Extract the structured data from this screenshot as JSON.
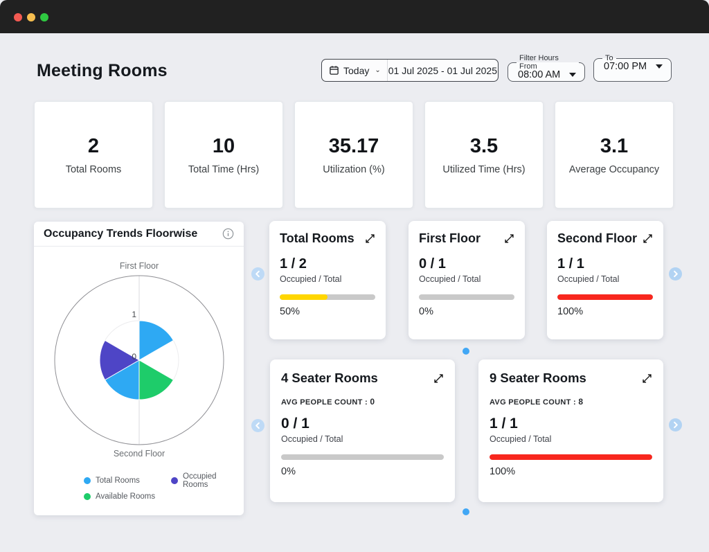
{
  "window": {
    "traffic_lights": {
      "close": "#F35A52",
      "minimize": "#F6BE4F",
      "zoom": "#2FC841"
    }
  },
  "header": {
    "title": "Meeting Rooms",
    "date_filter": {
      "preset": "Today",
      "range": "01 Jul 2025 - 01 Jul 2025"
    },
    "hours_from": {
      "label": "Filter Hours From",
      "value": "08:00 AM"
    },
    "hours_to": {
      "label": "To",
      "value": "07:00 PM"
    }
  },
  "stats": [
    {
      "value": "2",
      "label": "Total Rooms"
    },
    {
      "value": "10",
      "label": "Total Time (Hrs)"
    },
    {
      "value": "35.17",
      "label": "Utilization (%)"
    },
    {
      "value": "3.5",
      "label": "Utilized Time (Hrs)"
    },
    {
      "value": "3.1",
      "label": "Average Occupancy"
    }
  ],
  "trends_panel": {
    "title": "Occupancy Trends Floorwise",
    "legend": [
      {
        "label": "Total Rooms",
        "color": "#2EA9F3"
      },
      {
        "label": "Occupied Rooms",
        "color": "#4E45C6"
      },
      {
        "label": "Available Rooms",
        "color": "#1ECC6A"
      }
    ]
  },
  "chart_data": {
    "type": "polar-area",
    "title": "Occupancy Trends Floorwise",
    "categories": [
      "First Floor",
      "Second Floor"
    ],
    "series": [
      {
        "name": "Total Rooms",
        "color": "#2EA9F3",
        "values": [
          1,
          1
        ]
      },
      {
        "name": "Available Rooms",
        "color": "#1ECC6A",
        "values": [
          1,
          0
        ]
      },
      {
        "name": "Occupied Rooms",
        "color": "#4E45C6",
        "values": [
          0,
          1
        ]
      }
    ],
    "radial_ticks": [
      "0",
      "1"
    ],
    "radial_max": 2,
    "top_axis_label": "First Floor",
    "bottom_axis_label": "Second Floor",
    "legend_position": "bottom"
  },
  "occupancy_cards": [
    {
      "title": "Total Rooms",
      "value": "1 / 2",
      "caption": "Occupied / Total",
      "percent": 50,
      "percent_label": "50%",
      "bar_color": "#FFD600"
    },
    {
      "title": "First Floor",
      "value": "0 / 1",
      "caption": "Occupied / Total",
      "percent": 0,
      "percent_label": "0%",
      "bar_color": "#C9C9C9"
    },
    {
      "title": "Second Floor",
      "value": "1 / 1",
      "caption": "Occupied / Total",
      "percent": 100,
      "percent_label": "100%",
      "bar_color": "#F8271E"
    }
  ],
  "seater_cards": [
    {
      "title": "4 Seater Rooms",
      "avg_label": "AVG PEOPLE COUNT :",
      "avg_value": "0",
      "value": "0 / 1",
      "caption": "Occupied / Total",
      "percent": 0,
      "percent_label": "0%",
      "bar_color": "#C9C9C9"
    },
    {
      "title": "9 Seater Rooms",
      "avg_label": "AVG PEOPLE COUNT :",
      "avg_value": "8",
      "value": "1 / 1",
      "caption": "Occupied / Total",
      "percent": 100,
      "percent_label": "100%",
      "bar_color": "#F8271E"
    }
  ],
  "carousel": {
    "dot_color": "#42A7F5"
  }
}
